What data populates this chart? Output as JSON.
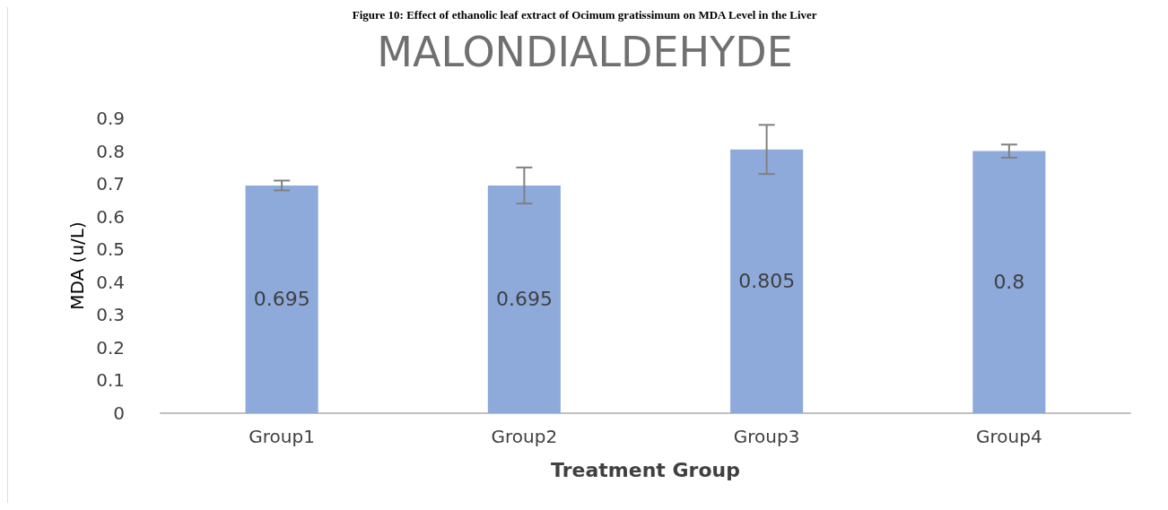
{
  "chart_data": {
    "type": "bar",
    "title": "MALONDIALDEHYDE",
    "xlabel": "Treatment Group",
    "ylabel": "MDA (u/L)",
    "annotations": [
      "Figure 10: Effect of ethanolic leaf extract of Ocimum gratissimum on MDA Level in the Liver"
    ],
    "categories": [
      "Group1",
      "Group2",
      "Group3",
      "Group4"
    ],
    "values": [
      0.695,
      0.695,
      0.805,
      0.8
    ],
    "errors": [
      0.015,
      0.055,
      0.075,
      0.02
    ],
    "color": "#8eaadb",
    "ylim": [
      0,
      0.9
    ],
    "yticks": [
      0,
      0.1,
      0.2,
      0.3,
      0.4,
      0.5,
      0.6,
      0.7,
      0.8,
      0.9
    ],
    "grid": false,
    "data_labels": true
  }
}
